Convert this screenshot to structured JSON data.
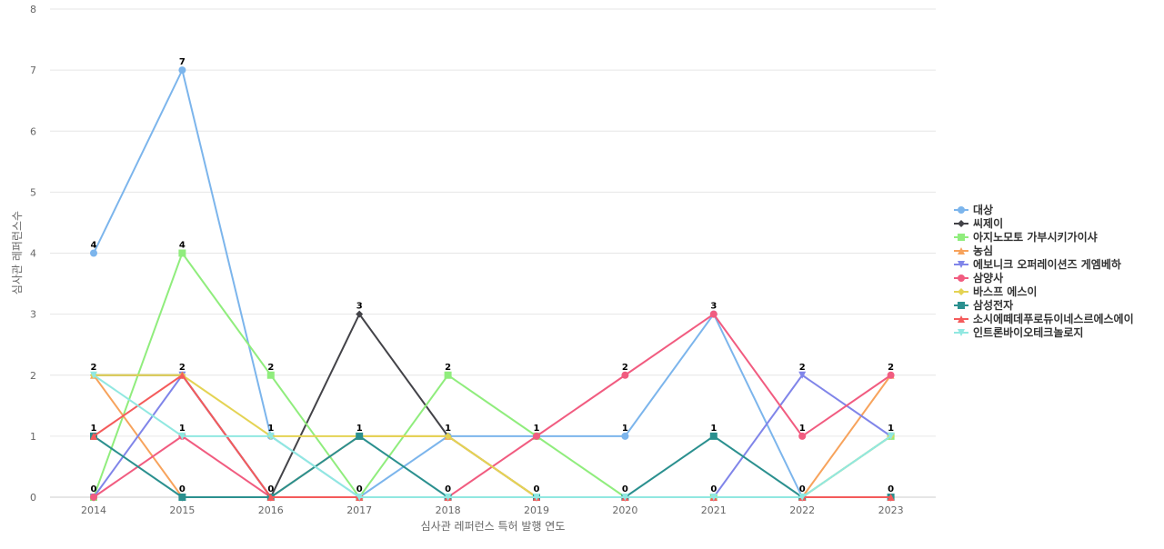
{
  "chart_data": {
    "type": "line",
    "xlabel": "심사관 레퍼런스 특허 발행 연도",
    "ylabel": "심사관 레퍼런스수",
    "x": [
      "2014",
      "2015",
      "2016",
      "2017",
      "2018",
      "2019",
      "2020",
      "2021",
      "2022",
      "2023"
    ],
    "ylim": [
      0,
      8
    ],
    "yticks": [
      0,
      1,
      2,
      3,
      4,
      5,
      6,
      7,
      8
    ],
    "grid": true,
    "legend": "right",
    "series": [
      {
        "name": "대상",
        "color": "#7cb5ec",
        "marker": "circle",
        "values": [
          4,
          7,
          1,
          0,
          1,
          1,
          1,
          3,
          0,
          1
        ]
      },
      {
        "name": "씨제이",
        "color": "#434348",
        "marker": "diamond",
        "values": [
          2,
          2,
          0,
          3,
          1,
          0,
          0,
          0,
          0,
          0
        ]
      },
      {
        "name": "아지노모토 가부시키가이샤",
        "color": "#90ed7d",
        "marker": "square",
        "values": [
          0,
          4,
          2,
          0,
          2,
          1,
          0,
          0,
          0,
          1
        ]
      },
      {
        "name": "농심",
        "color": "#f7a35c",
        "marker": "triangle",
        "values": [
          2,
          0,
          0,
          1,
          1,
          0,
          0,
          0,
          0,
          2
        ]
      },
      {
        "name": "에보니크 오퍼레이션즈 게엠베하",
        "color": "#8085e9",
        "marker": "triangle-down",
        "values": [
          0,
          2,
          0,
          0,
          0,
          0,
          0,
          0,
          2,
          1
        ]
      },
      {
        "name": "삼양사",
        "color": "#f15c80",
        "marker": "circle",
        "values": [
          0,
          1,
          0,
          0,
          0,
          1,
          2,
          3,
          1,
          2
        ]
      },
      {
        "name": "바스프 에스이",
        "color": "#e4d354",
        "marker": "diamond",
        "values": [
          2,
          2,
          1,
          1,
          1,
          0,
          0,
          0,
          0,
          1
        ]
      },
      {
        "name": "삼성전자",
        "color": "#2b908f",
        "marker": "square",
        "values": [
          1,
          0,
          0,
          1,
          0,
          0,
          0,
          1,
          0,
          0
        ]
      },
      {
        "name": "소시에떼데푸로듀이네스르에스에이",
        "color": "#f45b5b",
        "marker": "triangle",
        "values": [
          1,
          2,
          0,
          0,
          0,
          0,
          0,
          0,
          0,
          0
        ]
      },
      {
        "name": "인트론바이오테크놀로지",
        "color": "#91e8e1",
        "marker": "triangle-down",
        "values": [
          2,
          1,
          1,
          0,
          0,
          0,
          0,
          0,
          0,
          1
        ]
      }
    ],
    "data_labels": [
      {
        "x": "2014",
        "text": "4",
        "value": 4
      },
      {
        "x": "2014",
        "text": "2",
        "value": 2
      },
      {
        "x": "2014",
        "text": "1",
        "value": 1
      },
      {
        "x": "2014",
        "text": "0",
        "value": 0
      },
      {
        "x": "2015",
        "text": "7",
        "value": 7
      },
      {
        "x": "2015",
        "text": "4",
        "value": 4
      },
      {
        "x": "2015",
        "text": "2",
        "value": 2
      },
      {
        "x": "2015",
        "text": "1",
        "value": 1
      },
      {
        "x": "2015",
        "text": "0",
        "value": 0
      },
      {
        "x": "2016",
        "text": "2",
        "value": 2
      },
      {
        "x": "2016",
        "text": "1",
        "value": 1
      },
      {
        "x": "2016",
        "text": "0",
        "value": 0
      },
      {
        "x": "2017",
        "text": "3",
        "value": 3
      },
      {
        "x": "2017",
        "text": "1",
        "value": 1
      },
      {
        "x": "2017",
        "text": "0",
        "value": 0
      },
      {
        "x": "2018",
        "text": "2",
        "value": 2
      },
      {
        "x": "2018",
        "text": "1",
        "value": 1
      },
      {
        "x": "2018",
        "text": "0",
        "value": 0
      },
      {
        "x": "2019",
        "text": "1",
        "value": 1
      },
      {
        "x": "2019",
        "text": "0",
        "value": 0
      },
      {
        "x": "2020",
        "text": "2",
        "value": 2
      },
      {
        "x": "2020",
        "text": "1",
        "value": 1
      },
      {
        "x": "2020",
        "text": "0",
        "value": 0
      },
      {
        "x": "2021",
        "text": "3",
        "value": 3
      },
      {
        "x": "2021",
        "text": "1",
        "value": 1
      },
      {
        "x": "2021",
        "text": "0",
        "value": 0
      },
      {
        "x": "2022",
        "text": "2",
        "value": 2
      },
      {
        "x": "2022",
        "text": "1",
        "value": 1
      },
      {
        "x": "2022",
        "text": "0",
        "value": 0
      },
      {
        "x": "2023",
        "text": "2",
        "value": 2
      },
      {
        "x": "2023",
        "text": "1",
        "value": 1
      },
      {
        "x": "2023",
        "text": "0",
        "value": 0
      }
    ]
  }
}
